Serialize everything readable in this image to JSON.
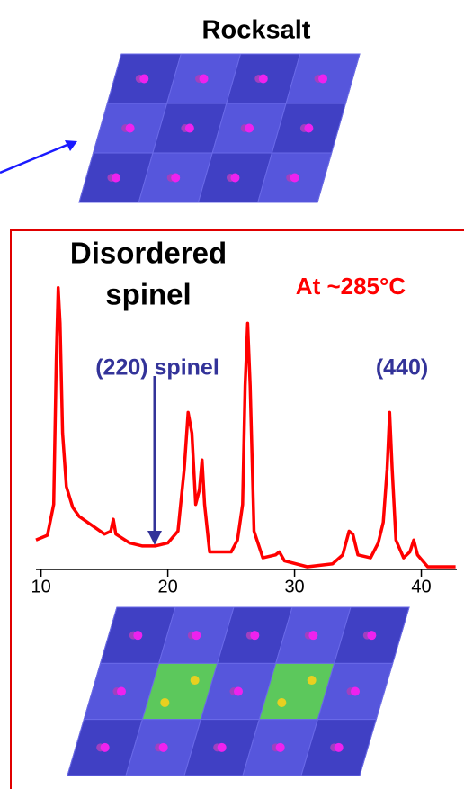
{
  "chart_data": {
    "type": "line",
    "labels": {
      "top_title": "Rocksalt",
      "title_line1": "Disordered",
      "title_line2": "spinel",
      "temperature": "At ~285°C",
      "peak_220": "(220) spinel",
      "peak_440": "(440)"
    },
    "x": [
      9.6,
      10.5,
      11.0,
      11.2,
      11.35,
      11.5,
      11.7,
      12.0,
      12.5,
      13.0,
      14,
      15,
      15.5,
      15.7,
      15.9,
      17,
      18,
      19,
      20,
      20.8,
      21.3,
      21.6,
      21.9,
      22.2,
      22.5,
      22.7,
      22.9,
      23.3,
      24,
      25,
      25.5,
      25.9,
      26.1,
      26.3,
      26.5,
      26.8,
      27.5,
      28.5,
      28.8,
      29.2,
      31,
      33,
      33.8,
      34.3,
      34.6,
      35,
      36,
      36.6,
      37.0,
      37.3,
      37.5,
      37.7,
      38.0,
      38.6,
      39.1,
      39.4,
      39.7,
      40.5,
      41.5,
      42.7
    ],
    "values": [
      9,
      10.6,
      21,
      70,
      94,
      82,
      45,
      27,
      20,
      17,
      14,
      11,
      12,
      16,
      11,
      8,
      7,
      7,
      8,
      12,
      33,
      52,
      45,
      21,
      26,
      36,
      21,
      5,
      5,
      5,
      9,
      21,
      61,
      82,
      61,
      12,
      3,
      4,
      5,
      2,
      0,
      1,
      4,
      12,
      11,
      4,
      3,
      8,
      15,
      33,
      52,
      33,
      9,
      3,
      5,
      9,
      4,
      0,
      0,
      0
    ],
    "color": "#ff0000",
    "xlim": [
      9.6,
      42.8
    ],
    "xticks": [
      10,
      20,
      30,
      40
    ],
    "ylim": [
      0,
      100
    ]
  }
}
